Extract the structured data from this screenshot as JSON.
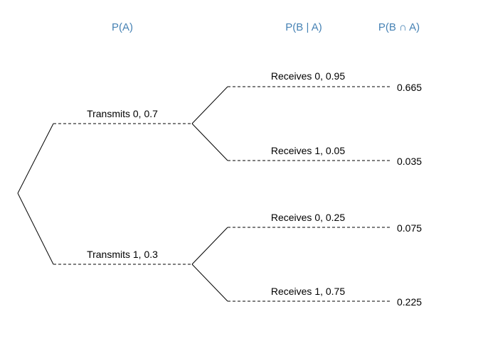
{
  "headers": {
    "prior": "P(A)",
    "conditional": "P(B | A)",
    "joint": "P(B ∩ A)"
  },
  "tree": {
    "branches": [
      {
        "label": "Transmits 0,  0.7",
        "children": [
          {
            "label": "Receives 0,  0.95",
            "joint": "0.665"
          },
          {
            "label": "Receives 1,  0.05",
            "joint": "0.035"
          }
        ]
      },
      {
        "label": "Transmits 1,  0.3",
        "children": [
          {
            "label": "Receives 0,  0.25",
            "joint": "0.075"
          },
          {
            "label": "Receives 1,  0.75",
            "joint": "0.225"
          }
        ]
      }
    ]
  }
}
